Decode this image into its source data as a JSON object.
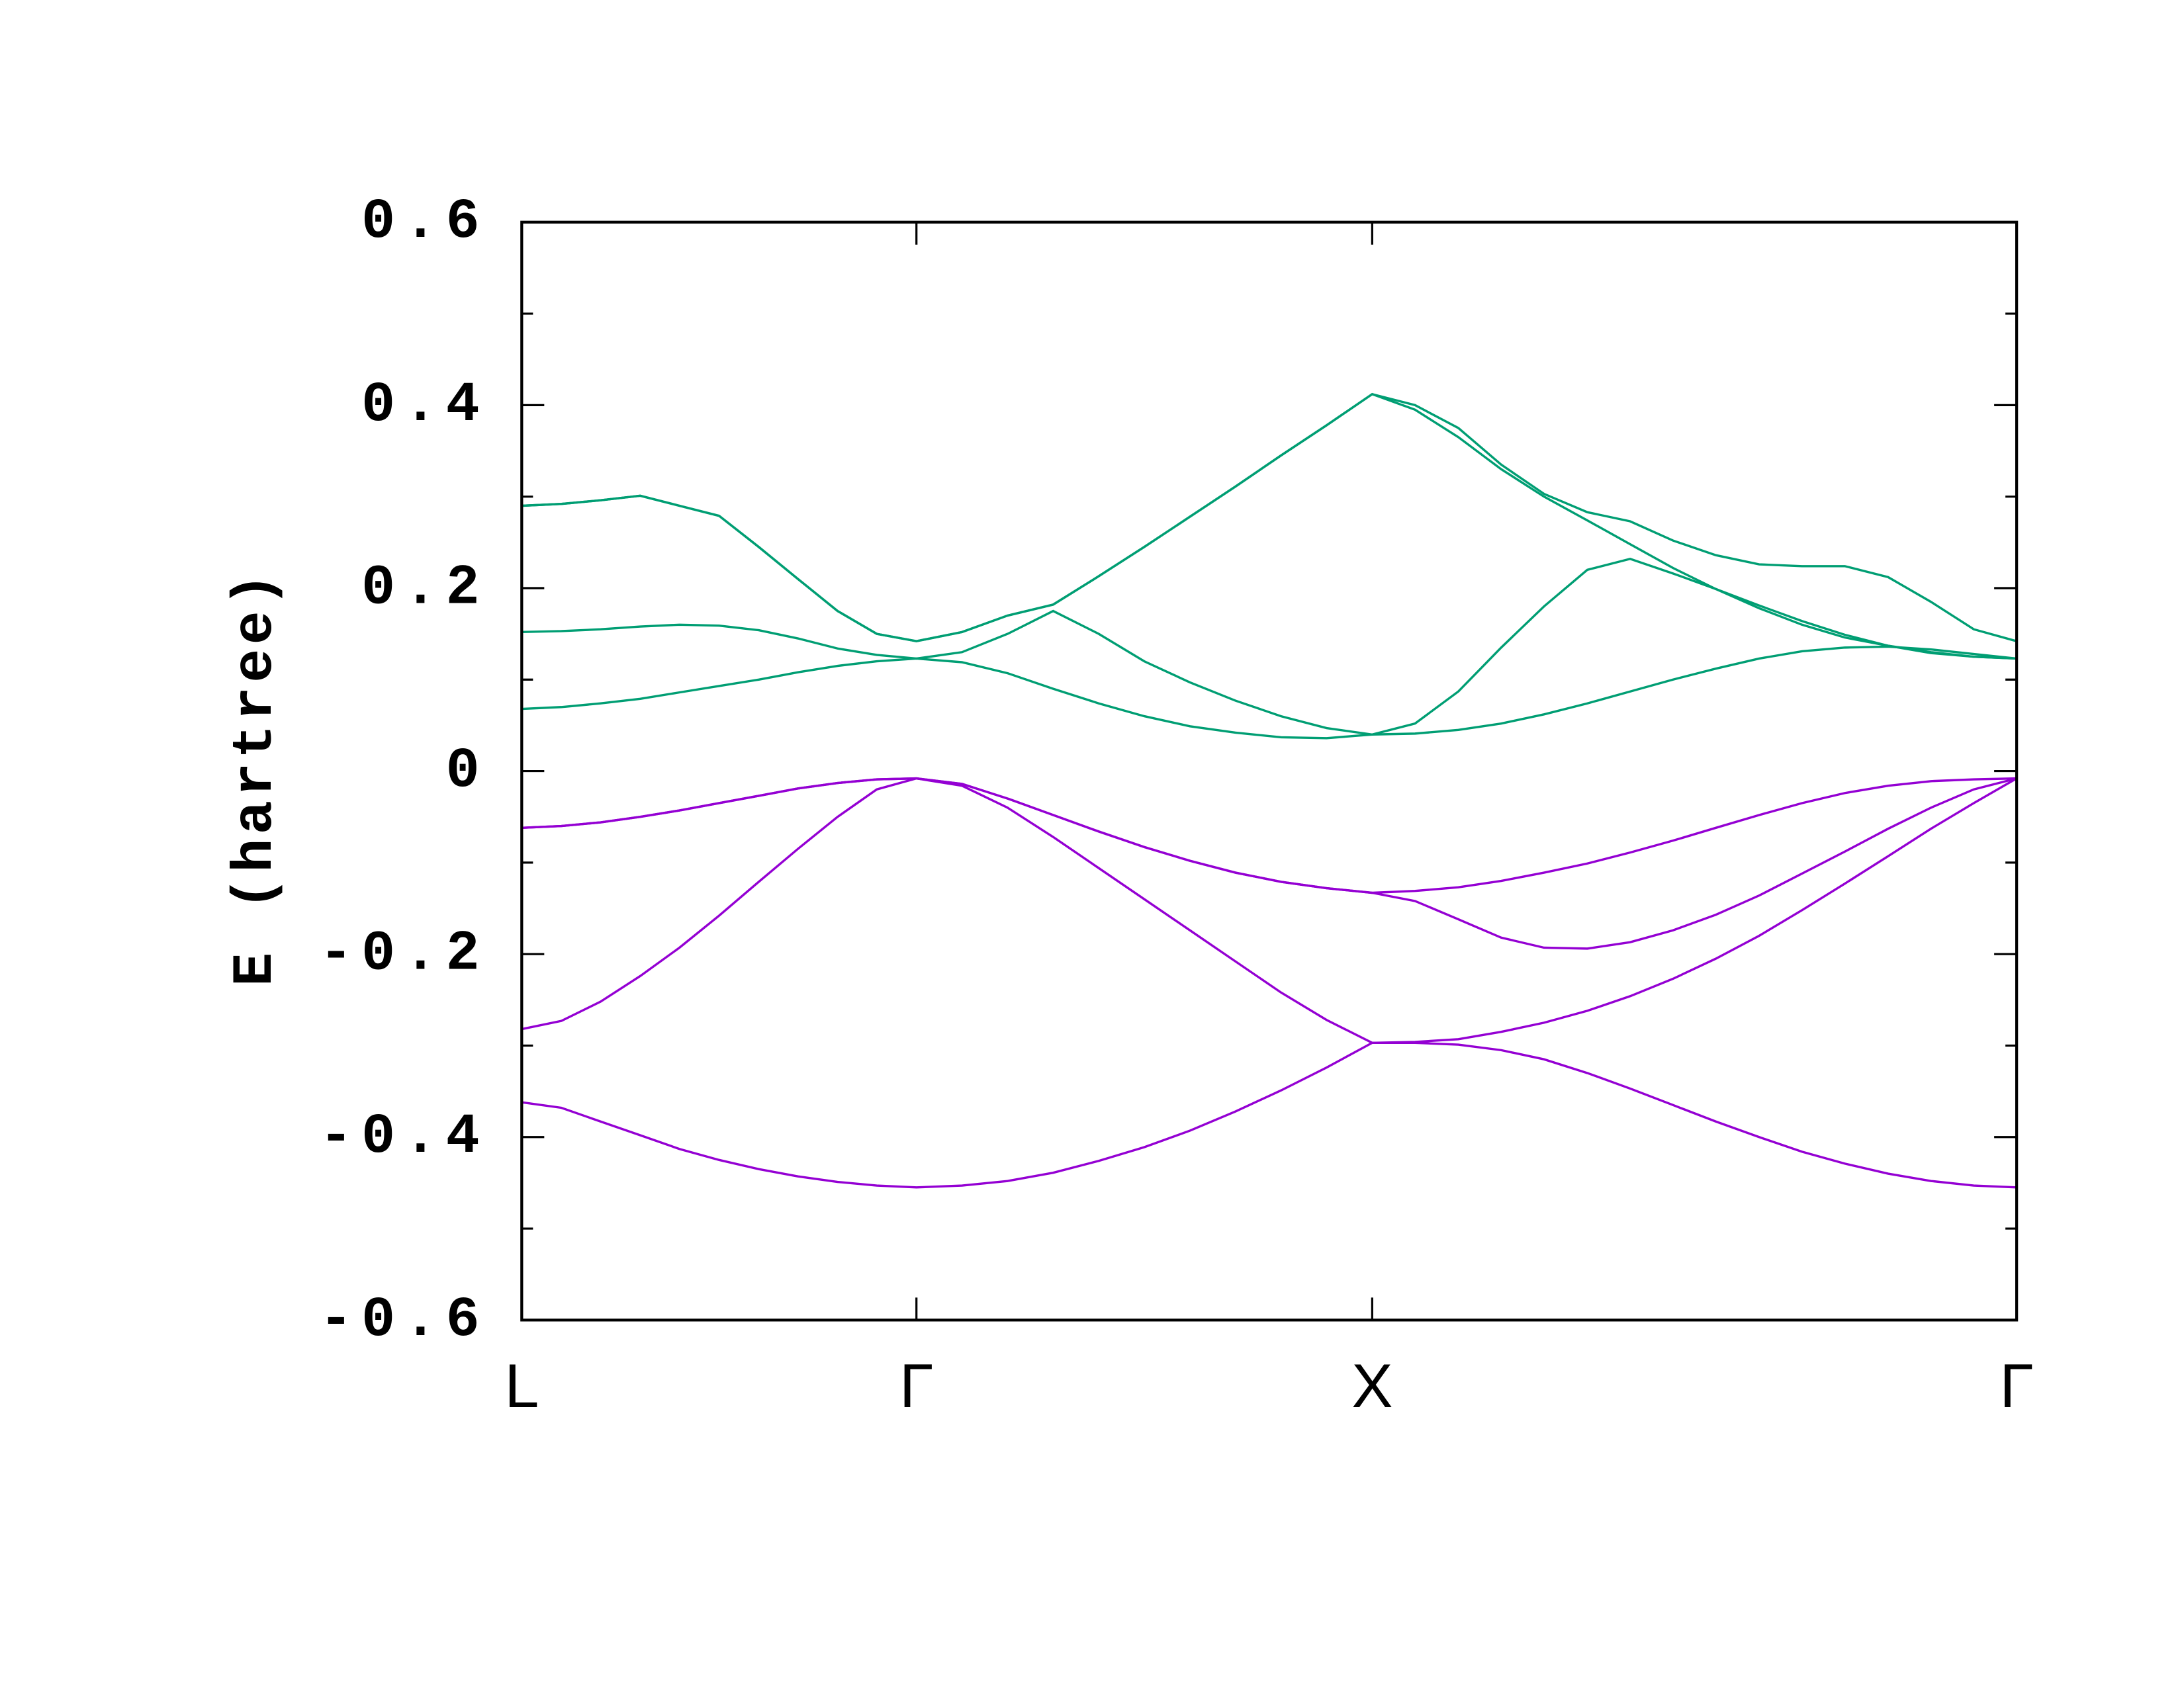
{
  "chart_data": {
    "type": "line",
    "ylabel": "E (hartree)",
    "x": [
      0,
      0.087,
      0.173,
      0.26,
      0.346,
      0.433,
      0.52,
      0.606,
      0.693,
      0.779,
      0.866,
      0.966,
      1.066,
      1.166,
      1.266,
      1.366,
      1.466,
      1.566,
      1.666,
      1.766,
      1.866,
      1.96,
      2.055,
      2.149,
      2.243,
      2.338,
      2.432,
      2.526,
      2.62,
      2.715,
      2.809,
      2.903,
      2.998,
      3.092,
      3.186,
      3.28
    ],
    "xlim": [
      0,
      3.28
    ],
    "xticks": [
      {
        "value": 0,
        "label": "L"
      },
      {
        "value": 0.866,
        "label": "Γ"
      },
      {
        "value": 1.866,
        "label": "X"
      },
      {
        "value": 3.28,
        "label": "Γ"
      }
    ],
    "ylim": [
      -0.6,
      0.6
    ],
    "yticks": [
      -0.6,
      -0.4,
      -0.2,
      0,
      0.2,
      0.4,
      0.6
    ],
    "yminorticks": [
      -0.5,
      -0.3,
      -0.1,
      0.1,
      0.3,
      0.5
    ],
    "grid": false,
    "series": [
      {
        "color": "#9400d3",
        "values": [
          -0.362,
          -0.368,
          -0.383,
          -0.398,
          -0.413,
          -0.425,
          -0.435,
          -0.443,
          -0.449,
          -0.453,
          -0.455,
          -0.453,
          -0.448,
          -0.439,
          -0.426,
          -0.411,
          -0.393,
          -0.372,
          -0.349,
          -0.324,
          -0.297,
          -0.297,
          -0.299,
          -0.305,
          -0.315,
          -0.33,
          -0.347,
          -0.365,
          -0.383,
          -0.4,
          -0.416,
          -0.429,
          -0.44,
          -0.448,
          -0.453,
          -0.455
        ]
      },
      {
        "color": "#9400d3",
        "values": [
          -0.282,
          -0.273,
          -0.252,
          -0.224,
          -0.193,
          -0.158,
          -0.121,
          -0.085,
          -0.05,
          -0.02,
          -0.008,
          -0.016,
          -0.04,
          -0.072,
          -0.106,
          -0.14,
          -0.174,
          -0.208,
          -0.242,
          -0.272,
          -0.297,
          -0.296,
          -0.293,
          -0.285,
          -0.275,
          -0.262,
          -0.246,
          -0.227,
          -0.205,
          -0.18,
          -0.152,
          -0.123,
          -0.093,
          -0.063,
          -0.035,
          -0.008
        ]
      },
      {
        "color": "#9400d3",
        "values": [
          -0.062,
          -0.06,
          -0.056,
          -0.05,
          -0.043,
          -0.035,
          -0.027,
          -0.019,
          -0.013,
          -0.009,
          -0.008,
          -0.014,
          -0.03,
          -0.048,
          -0.066,
          -0.083,
          -0.098,
          -0.111,
          -0.121,
          -0.128,
          -0.133,
          -0.142,
          -0.162,
          -0.182,
          -0.193,
          -0.194,
          -0.187,
          -0.174,
          -0.157,
          -0.136,
          -0.112,
          -0.088,
          -0.063,
          -0.04,
          -0.02,
          -0.008
        ]
      },
      {
        "color": "#9400d3",
        "values": [
          -0.062,
          -0.06,
          -0.056,
          -0.05,
          -0.043,
          -0.035,
          -0.027,
          -0.019,
          -0.013,
          -0.009,
          -0.008,
          -0.014,
          -0.03,
          -0.048,
          -0.066,
          -0.083,
          -0.098,
          -0.111,
          -0.121,
          -0.128,
          -0.133,
          -0.131,
          -0.127,
          -0.12,
          -0.111,
          -0.101,
          -0.089,
          -0.076,
          -0.062,
          -0.048,
          -0.035,
          -0.024,
          -0.016,
          -0.011,
          -0.009,
          -0.008
        ]
      },
      {
        "color": "#009e73",
        "values": [
          0.068,
          0.07,
          0.074,
          0.079,
          0.086,
          0.093,
          0.1,
          0.108,
          0.115,
          0.12,
          0.123,
          0.119,
          0.107,
          0.09,
          0.074,
          0.06,
          0.049,
          0.042,
          0.037,
          0.036,
          0.04,
          0.041,
          0.045,
          0.052,
          0.062,
          0.074,
          0.087,
          0.1,
          0.112,
          0.123,
          0.131,
          0.135,
          0.136,
          0.133,
          0.128,
          0.123
        ]
      },
      {
        "color": "#009e73",
        "values": [
          0.152,
          0.153,
          0.155,
          0.158,
          0.16,
          0.159,
          0.154,
          0.145,
          0.134,
          0.127,
          0.123,
          0.13,
          0.15,
          0.175,
          0.15,
          0.12,
          0.097,
          0.077,
          0.06,
          0.047,
          0.04,
          0.052,
          0.087,
          0.135,
          0.18,
          0.22,
          0.232,
          0.216,
          0.199,
          0.181,
          0.164,
          0.149,
          0.137,
          0.129,
          0.125,
          0.123
        ]
      },
      {
        "color": "#009e73",
        "values": [
          0.29,
          0.292,
          0.296,
          0.301,
          0.29,
          0.279,
          0.245,
          0.21,
          0.175,
          0.15,
          0.142,
          0.152,
          0.17,
          0.182,
          0.213,
          0.245,
          0.278,
          0.311,
          0.345,
          0.378,
          0.412,
          0.395,
          0.365,
          0.33,
          0.3,
          0.274,
          0.248,
          0.222,
          0.199,
          0.178,
          0.16,
          0.146,
          0.137,
          0.13,
          0.125,
          0.123
        ]
      },
      {
        "color": "#009e73",
        "values": [
          0.29,
          0.292,
          0.296,
          0.301,
          0.29,
          0.279,
          0.245,
          0.21,
          0.175,
          0.15,
          0.142,
          0.152,
          0.17,
          0.182,
          0.213,
          0.245,
          0.278,
          0.311,
          0.345,
          0.378,
          0.412,
          0.4,
          0.375,
          0.335,
          0.303,
          0.283,
          0.273,
          0.252,
          0.236,
          0.226,
          0.224,
          0.224,
          0.212,
          0.185,
          0.155,
          0.142
        ]
      }
    ]
  }
}
